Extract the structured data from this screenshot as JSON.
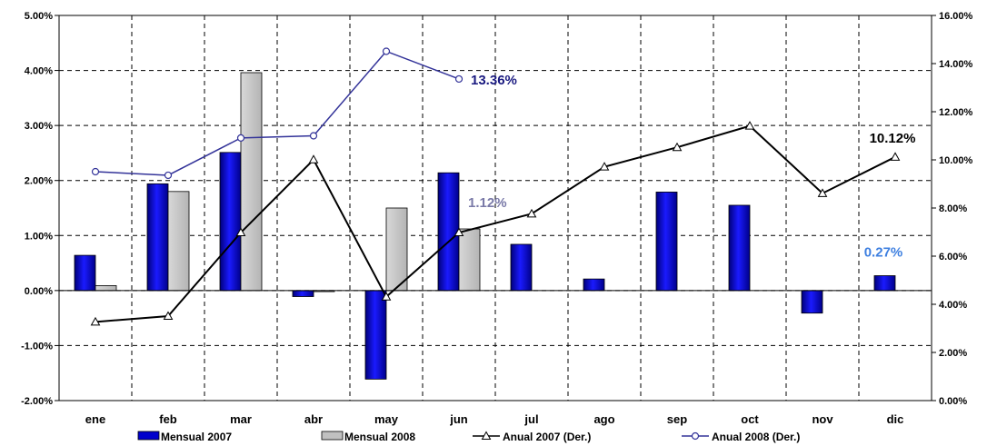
{
  "chart_data": {
    "type": "bar",
    "categories": [
      "ene",
      "feb",
      "mar",
      "abr",
      "may",
      "jun",
      "jul",
      "ago",
      "sep",
      "oct",
      "nov",
      "dic"
    ],
    "series": [
      {
        "name": "Mensual 2007",
        "kind": "bar",
        "axis": "left",
        "color": "#0000cc",
        "values": [
          0.64,
          1.94,
          2.51,
          -0.11,
          -1.61,
          2.14,
          0.84,
          0.21,
          1.79,
          1.55,
          -0.41,
          0.27
        ]
      },
      {
        "name": "Mensual 2008",
        "kind": "bar",
        "axis": "left",
        "color": "#c0c0c0",
        "values": [
          0.09,
          1.8,
          3.96,
          -0.02,
          1.5,
          1.12,
          null,
          null,
          null,
          null,
          null,
          null
        ]
      },
      {
        "name": "Anual 2007 (Der.)",
        "kind": "line",
        "axis": "right",
        "color": "#000000",
        "marker": "triangle",
        "values": [
          3.27,
          3.51,
          6.98,
          10.01,
          4.31,
          6.98,
          7.76,
          9.71,
          10.52,
          11.41,
          8.61,
          10.12
        ]
      },
      {
        "name": "Anual 2008 (Der.)",
        "kind": "line",
        "axis": "right",
        "color": "#333399",
        "marker": "circle",
        "values": [
          9.51,
          9.36,
          10.91,
          11.0,
          14.51,
          13.36,
          null,
          null,
          null,
          null,
          null,
          null
        ]
      }
    ],
    "y_left": {
      "min": -2,
      "max": 5,
      "step": 1,
      "ticks": [
        "-2.00%",
        "-1.00%",
        "0.00%",
        "1.00%",
        "2.00%",
        "3.00%",
        "4.00%",
        "5.00%"
      ]
    },
    "y_right": {
      "min": 0,
      "max": 16,
      "step": 2,
      "ticks": [
        "0.00%",
        "2.00%",
        "4.00%",
        "6.00%",
        "8.00%",
        "10.00%",
        "12.00%",
        "14.00%",
        "16.00%"
      ]
    },
    "annotations": [
      {
        "text": "13.36%",
        "color": "#1a1a80"
      },
      {
        "text": "1.12%",
        "color": "#7a7aa8"
      },
      {
        "text": "10.12%",
        "color": "#000000"
      },
      {
        "text": "0.27%",
        "color": "#3d7fe0"
      }
    ],
    "grid": true,
    "legend_position": "bottom"
  }
}
